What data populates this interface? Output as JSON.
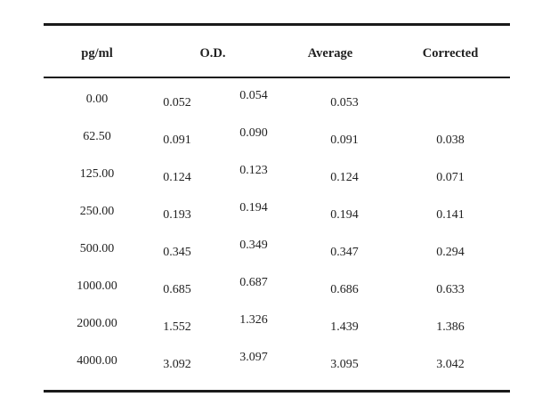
{
  "table": {
    "headers": {
      "pgml": "pg/ml",
      "od": "O.D.",
      "average": "Average",
      "corrected": "Corrected"
    },
    "rows": [
      {
        "pgml": "0.00",
        "od1": "0.052",
        "od2": "0.054",
        "average": "0.053",
        "corrected": ""
      },
      {
        "pgml": "62.50",
        "od1": "0.091",
        "od2": "0.090",
        "average": "0.091",
        "corrected": "0.038"
      },
      {
        "pgml": "125.00",
        "od1": "0.124",
        "od2": "0.123",
        "average": "0.124",
        "corrected": "0.071"
      },
      {
        "pgml": "250.00",
        "od1": "0.193",
        "od2": "0.194",
        "average": "0.194",
        "corrected": "0.141"
      },
      {
        "pgml": "500.00",
        "od1": "0.345",
        "od2": "0.349",
        "average": "0.347",
        "corrected": "0.294"
      },
      {
        "pgml": "1000.00",
        "od1": "0.685",
        "od2": "0.687",
        "average": "0.686",
        "corrected": "0.633"
      },
      {
        "pgml": "2000.00",
        "od1": "1.552",
        "od2": "1.326",
        "average": "1.439",
        "corrected": "1.386"
      },
      {
        "pgml": "4000.00",
        "od1": "3.092",
        "od2": "3.097",
        "average": "3.095",
        "corrected": "3.042"
      }
    ]
  }
}
